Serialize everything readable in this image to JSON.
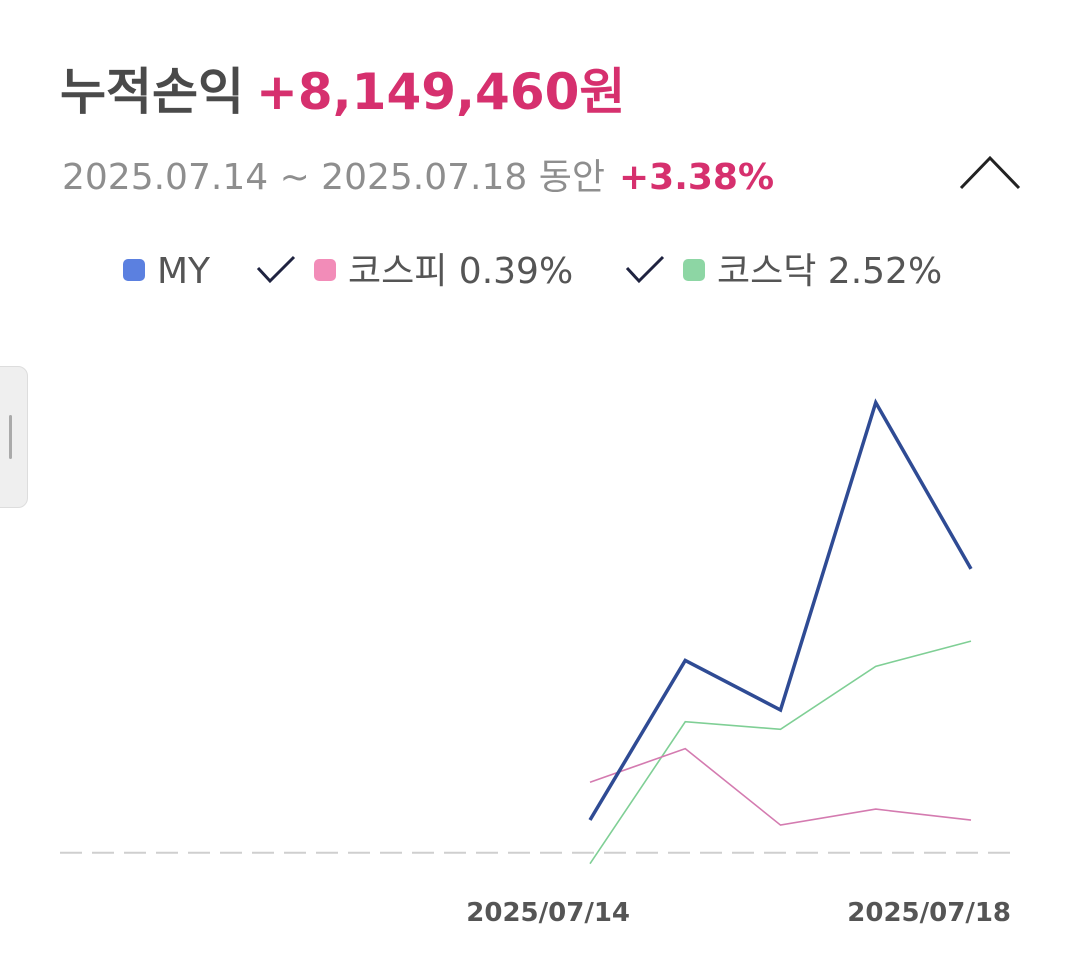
{
  "header": {
    "title": "누적손익",
    "amount": "+8,149,460원",
    "period": "2025.07.14 ~ 2025.07.18 동안",
    "return": "+3.38%"
  },
  "chart_data": {
    "type": "line",
    "categories": [
      "2025/07/14",
      null,
      null,
      null,
      "2025/07/18"
    ],
    "series": [
      {
        "name": "MY",
        "color": "#2f4b94",
        "legend_color": "#5b80e0",
        "values": [
          0.39,
          2.29,
          1.7,
          5.36,
          3.38
        ]
      },
      {
        "name": "코스피 0.39%",
        "color": "#d47bb0",
        "legend_color": "#f28cb8",
        "values": [
          0.84,
          1.24,
          0.33,
          0.52,
          0.39
        ]
      },
      {
        "name": "코스닥 2.52%",
        "color": "#7fcf95",
        "legend_color": "#8dd6a4",
        "values": [
          -0.13,
          1.56,
          1.47,
          2.22,
          2.52
        ]
      }
    ],
    "ylim": [
      -0.3,
      6.2
    ]
  }
}
